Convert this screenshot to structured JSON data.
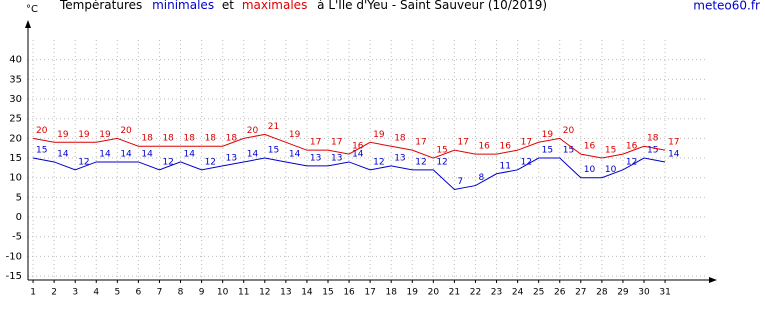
{
  "chart_data": {
    "type": "line",
    "title_parts": [
      "Températures",
      "et",
      "à L'Ile d'Yeu - Saint Sauveur (10/2019)"
    ],
    "y_label": "°C",
    "source": "meteo60.fr",
    "x": [
      1,
      2,
      3,
      4,
      5,
      6,
      7,
      8,
      9,
      10,
      11,
      12,
      13,
      14,
      15,
      16,
      17,
      18,
      19,
      20,
      21,
      22,
      23,
      24,
      25,
      26,
      27,
      28,
      29,
      30,
      31
    ],
    "xlim": [
      0.76,
      33.37
    ],
    "ylim": [
      -16,
      45
    ],
    "yticks": [
      -15,
      -10,
      -5,
      0,
      5,
      10,
      15,
      20,
      25,
      30,
      35,
      40
    ],
    "grid": true,
    "series": [
      {
        "name": "minimales",
        "color": "#0000cc",
        "values": [
          15,
          14,
          12,
          14,
          14,
          14,
          12,
          14,
          12,
          13,
          14,
          15,
          14,
          13,
          13,
          14,
          12,
          13,
          12,
          12,
          7,
          8,
          11,
          12,
          15,
          15,
          10,
          10,
          12,
          15,
          14
        ]
      },
      {
        "name": "maximales",
        "color": "#dd0000",
        "values": [
          20,
          19,
          19,
          19,
          20,
          18,
          18,
          18,
          18,
          18,
          20,
          21,
          19,
          17,
          17,
          16,
          19,
          18,
          17,
          15,
          17,
          16,
          16,
          17,
          19,
          20,
          16,
          15,
          16,
          18,
          17
        ]
      }
    ]
  }
}
